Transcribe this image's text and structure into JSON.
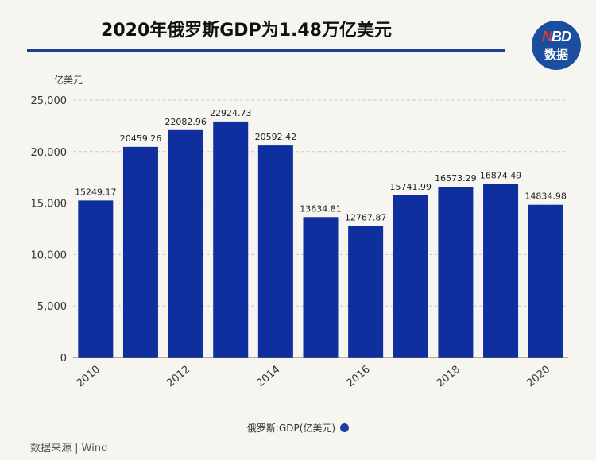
{
  "title": "2020年俄罗斯GDP为1.48万亿美元",
  "logo": {
    "line1_accent": "N",
    "line1_rest": "BD",
    "line2": "数据"
  },
  "source": "数据来源 | Wind",
  "colors": {
    "bar": "#0f2f9e",
    "title_rule": "#1d3f91",
    "logo_bg": "#1b4e9e"
  },
  "chart_data": {
    "type": "bar",
    "categories": [
      "2010",
      "2011",
      "2012",
      "2013",
      "2014",
      "2015",
      "2016",
      "2017",
      "2018",
      "2019",
      "2020"
    ],
    "x_tick_labels": [
      "2010",
      "",
      "2012",
      "",
      "2014",
      "",
      "2016",
      "",
      "2018",
      "",
      "2020"
    ],
    "series": [
      {
        "name": "俄罗斯:GDP(亿美元)",
        "values": [
          15249.17,
          20459.26,
          22082.96,
          22924.73,
          20592.42,
          13634.81,
          12767.87,
          15741.99,
          16573.29,
          16874.49,
          14834.98
        ],
        "labels": [
          "15249.17",
          "20459.26",
          "22082.96",
          "22924.73",
          "20592.42",
          "13634.81",
          "12767.87",
          "15741.99",
          "16573.29",
          "16874.49",
          "14834.98"
        ]
      }
    ],
    "ylabel": "亿美元",
    "ylim": [
      0,
      25000
    ],
    "yticks": [
      0,
      5000,
      10000,
      15000,
      20000,
      25000
    ],
    "ytick_labels": [
      "0",
      "5,000",
      "10,000",
      "15,000",
      "20,000",
      "25,000"
    ],
    "grid": true,
    "legend_position": "bottom"
  }
}
